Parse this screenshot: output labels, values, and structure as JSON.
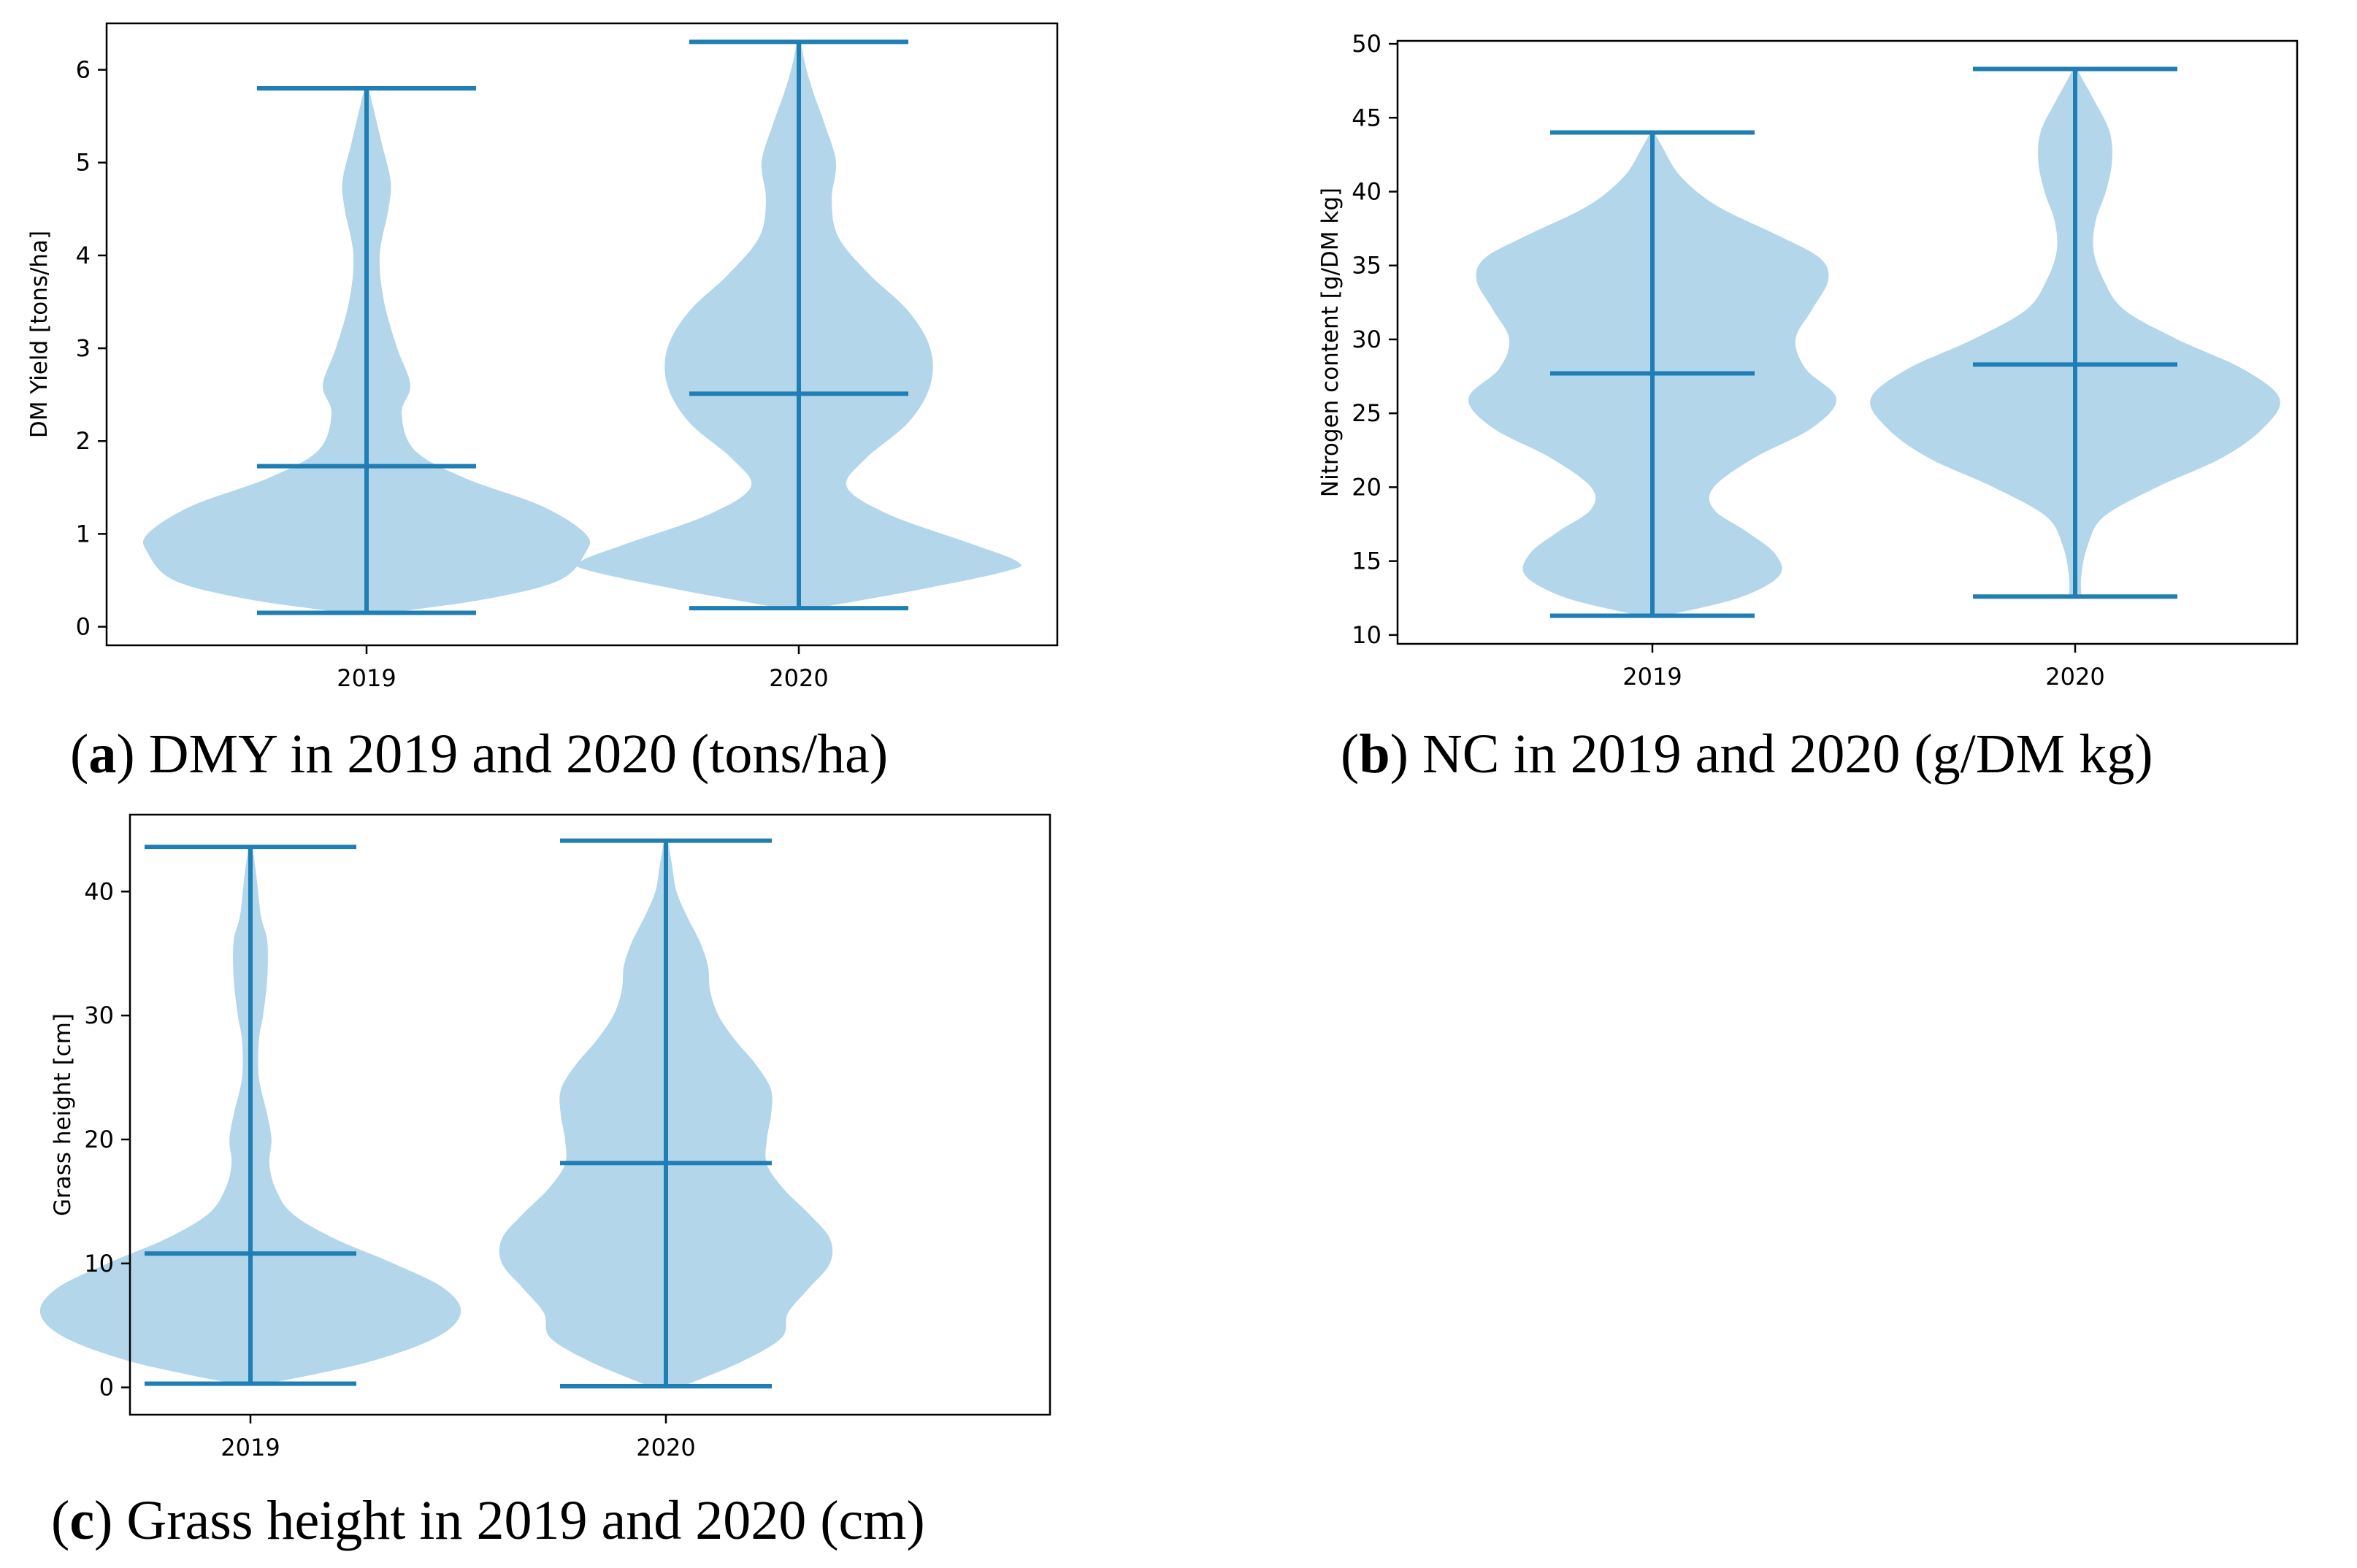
{
  "colors": {
    "body": "#b3d6ea",
    "line": "#1f7eb4",
    "axis": "#000000"
  },
  "chart_data": [
    {
      "type": "violin",
      "caption": {
        "letter": "a",
        "text": "DMY in 2019 and 2020 (tons/ha)"
      },
      "ylabel": "DM Yield [tons/ha]",
      "ylim": [
        -0.2,
        6.5
      ],
      "yticks": [
        0,
        1,
        2,
        3,
        4,
        5,
        6
      ],
      "categories": [
        "2019",
        "2020"
      ],
      "series": [
        {
          "name": "2019",
          "min": 0.15,
          "max": 5.8,
          "mean": 1.73,
          "profile": [
            [
              0.15,
              0.1
            ],
            [
              0.3,
              0.55
            ],
            [
              0.5,
              0.88
            ],
            [
              0.8,
              1.0
            ],
            [
              1.0,
              1.0
            ],
            [
              1.3,
              0.8
            ],
            [
              1.6,
              0.45
            ],
            [
              1.9,
              0.22
            ],
            [
              2.3,
              0.16
            ],
            [
              2.6,
              0.2
            ],
            [
              3.0,
              0.14
            ],
            [
              3.5,
              0.08
            ],
            [
              4.0,
              0.06
            ],
            [
              4.5,
              0.1
            ],
            [
              4.8,
              0.11
            ],
            [
              5.2,
              0.07
            ],
            [
              5.6,
              0.03
            ],
            [
              5.8,
              0.01
            ]
          ]
        },
        {
          "name": "2020",
          "min": 0.2,
          "max": 6.3,
          "mean": 2.51,
          "profile": [
            [
              0.2,
              0.08
            ],
            [
              0.4,
              0.55
            ],
            [
              0.6,
              0.95
            ],
            [
              0.7,
              1.0
            ],
            [
              0.9,
              0.78
            ],
            [
              1.2,
              0.42
            ],
            [
              1.5,
              0.22
            ],
            [
              1.8,
              0.3
            ],
            [
              2.2,
              0.5
            ],
            [
              2.6,
              0.6
            ],
            [
              3.0,
              0.6
            ],
            [
              3.4,
              0.5
            ],
            [
              3.8,
              0.32
            ],
            [
              4.2,
              0.18
            ],
            [
              4.6,
              0.15
            ],
            [
              5.0,
              0.17
            ],
            [
              5.4,
              0.12
            ],
            [
              5.8,
              0.06
            ],
            [
              6.1,
              0.025
            ],
            [
              6.3,
              0.01
            ]
          ]
        }
      ]
    },
    {
      "type": "violin",
      "caption": {
        "letter": "b",
        "text": "NC in 2019 and 2020 (g/DM kg)"
      },
      "ylabel": "Nitrogen content [g/DM kg]",
      "ylim": [
        9.4,
        50.2
      ],
      "yticks": [
        10,
        15,
        20,
        25,
        30,
        35,
        40,
        45,
        50
      ],
      "categories": [
        "2019",
        "2020"
      ],
      "series": [
        {
          "name": "2019",
          "min": 11.3,
          "max": 44.0,
          "mean": 27.7,
          "profile": [
            [
              11.3,
              0.06
            ],
            [
              12.5,
              0.42
            ],
            [
              14,
              0.62
            ],
            [
              15.5,
              0.6
            ],
            [
              17,
              0.46
            ],
            [
              18.5,
              0.3
            ],
            [
              20,
              0.3
            ],
            [
              22,
              0.5
            ],
            [
              24,
              0.78
            ],
            [
              26,
              0.9
            ],
            [
              28,
              0.75
            ],
            [
              30,
              0.7
            ],
            [
              32,
              0.78
            ],
            [
              34,
              0.86
            ],
            [
              35.5,
              0.82
            ],
            [
              37,
              0.62
            ],
            [
              39,
              0.32
            ],
            [
              41,
              0.14
            ],
            [
              43,
              0.05
            ],
            [
              44,
              0.01
            ]
          ]
        },
        {
          "name": "2020",
          "min": 12.6,
          "max": 48.3,
          "mean": 28.3,
          "profile": [
            [
              12.6,
              0.03
            ],
            [
              14,
              0.03
            ],
            [
              16,
              0.06
            ],
            [
              18,
              0.14
            ],
            [
              20,
              0.4
            ],
            [
              22,
              0.72
            ],
            [
              24,
              0.92
            ],
            [
              26,
              1.0
            ],
            [
              28,
              0.82
            ],
            [
              30,
              0.5
            ],
            [
              32,
              0.24
            ],
            [
              34,
              0.14
            ],
            [
              36,
              0.09
            ],
            [
              38,
              0.1
            ],
            [
              40,
              0.15
            ],
            [
              42,
              0.18
            ],
            [
              44,
              0.17
            ],
            [
              46,
              0.1
            ],
            [
              47.5,
              0.04
            ],
            [
              48.3,
              0.01
            ]
          ]
        }
      ]
    },
    {
      "type": "violin",
      "caption": {
        "letter": "c",
        "text": "Grass height in 2019 and 2020 (cm)"
      },
      "ylabel": "Grass height [cm]",
      "ylim": [
        -2.2,
        46.2
      ],
      "yticks": [
        0,
        10,
        20,
        30,
        40
      ],
      "categories": [
        "2019",
        "2020"
      ],
      "series": [
        {
          "name": "2019",
          "min": 0.3,
          "max": 43.6,
          "mean": 10.8,
          "profile": [
            [
              0.3,
              0.08
            ],
            [
              2,
              0.55
            ],
            [
              4,
              0.88
            ],
            [
              6,
              1.0
            ],
            [
              8,
              0.92
            ],
            [
              10,
              0.68
            ],
            [
              12,
              0.4
            ],
            [
              14,
              0.2
            ],
            [
              16,
              0.12
            ],
            [
              18,
              0.09
            ],
            [
              20,
              0.1
            ],
            [
              22,
              0.08
            ],
            [
              25,
              0.04
            ],
            [
              28,
              0.04
            ],
            [
              30,
              0.06
            ],
            [
              33,
              0.08
            ],
            [
              36,
              0.08
            ],
            [
              38,
              0.05
            ],
            [
              41,
              0.03
            ],
            [
              43.6,
              0.01
            ]
          ]
        },
        {
          "name": "2020",
          "min": 0.1,
          "max": 44.1,
          "mean": 18.1,
          "profile": [
            [
              0.1,
              0.08
            ],
            [
              2,
              0.35
            ],
            [
              4,
              0.55
            ],
            [
              6,
              0.58
            ],
            [
              8,
              0.68
            ],
            [
              10,
              0.78
            ],
            [
              12,
              0.78
            ],
            [
              14,
              0.68
            ],
            [
              16,
              0.56
            ],
            [
              18,
              0.48
            ],
            [
              20,
              0.48
            ],
            [
              22,
              0.5
            ],
            [
              24,
              0.5
            ],
            [
              26,
              0.43
            ],
            [
              28,
              0.33
            ],
            [
              30,
              0.25
            ],
            [
              32,
              0.21
            ],
            [
              34,
              0.2
            ],
            [
              36,
              0.16
            ],
            [
              38,
              0.1
            ],
            [
              40,
              0.05
            ],
            [
              42,
              0.03
            ],
            [
              44.1,
              0.01
            ]
          ]
        }
      ]
    }
  ]
}
